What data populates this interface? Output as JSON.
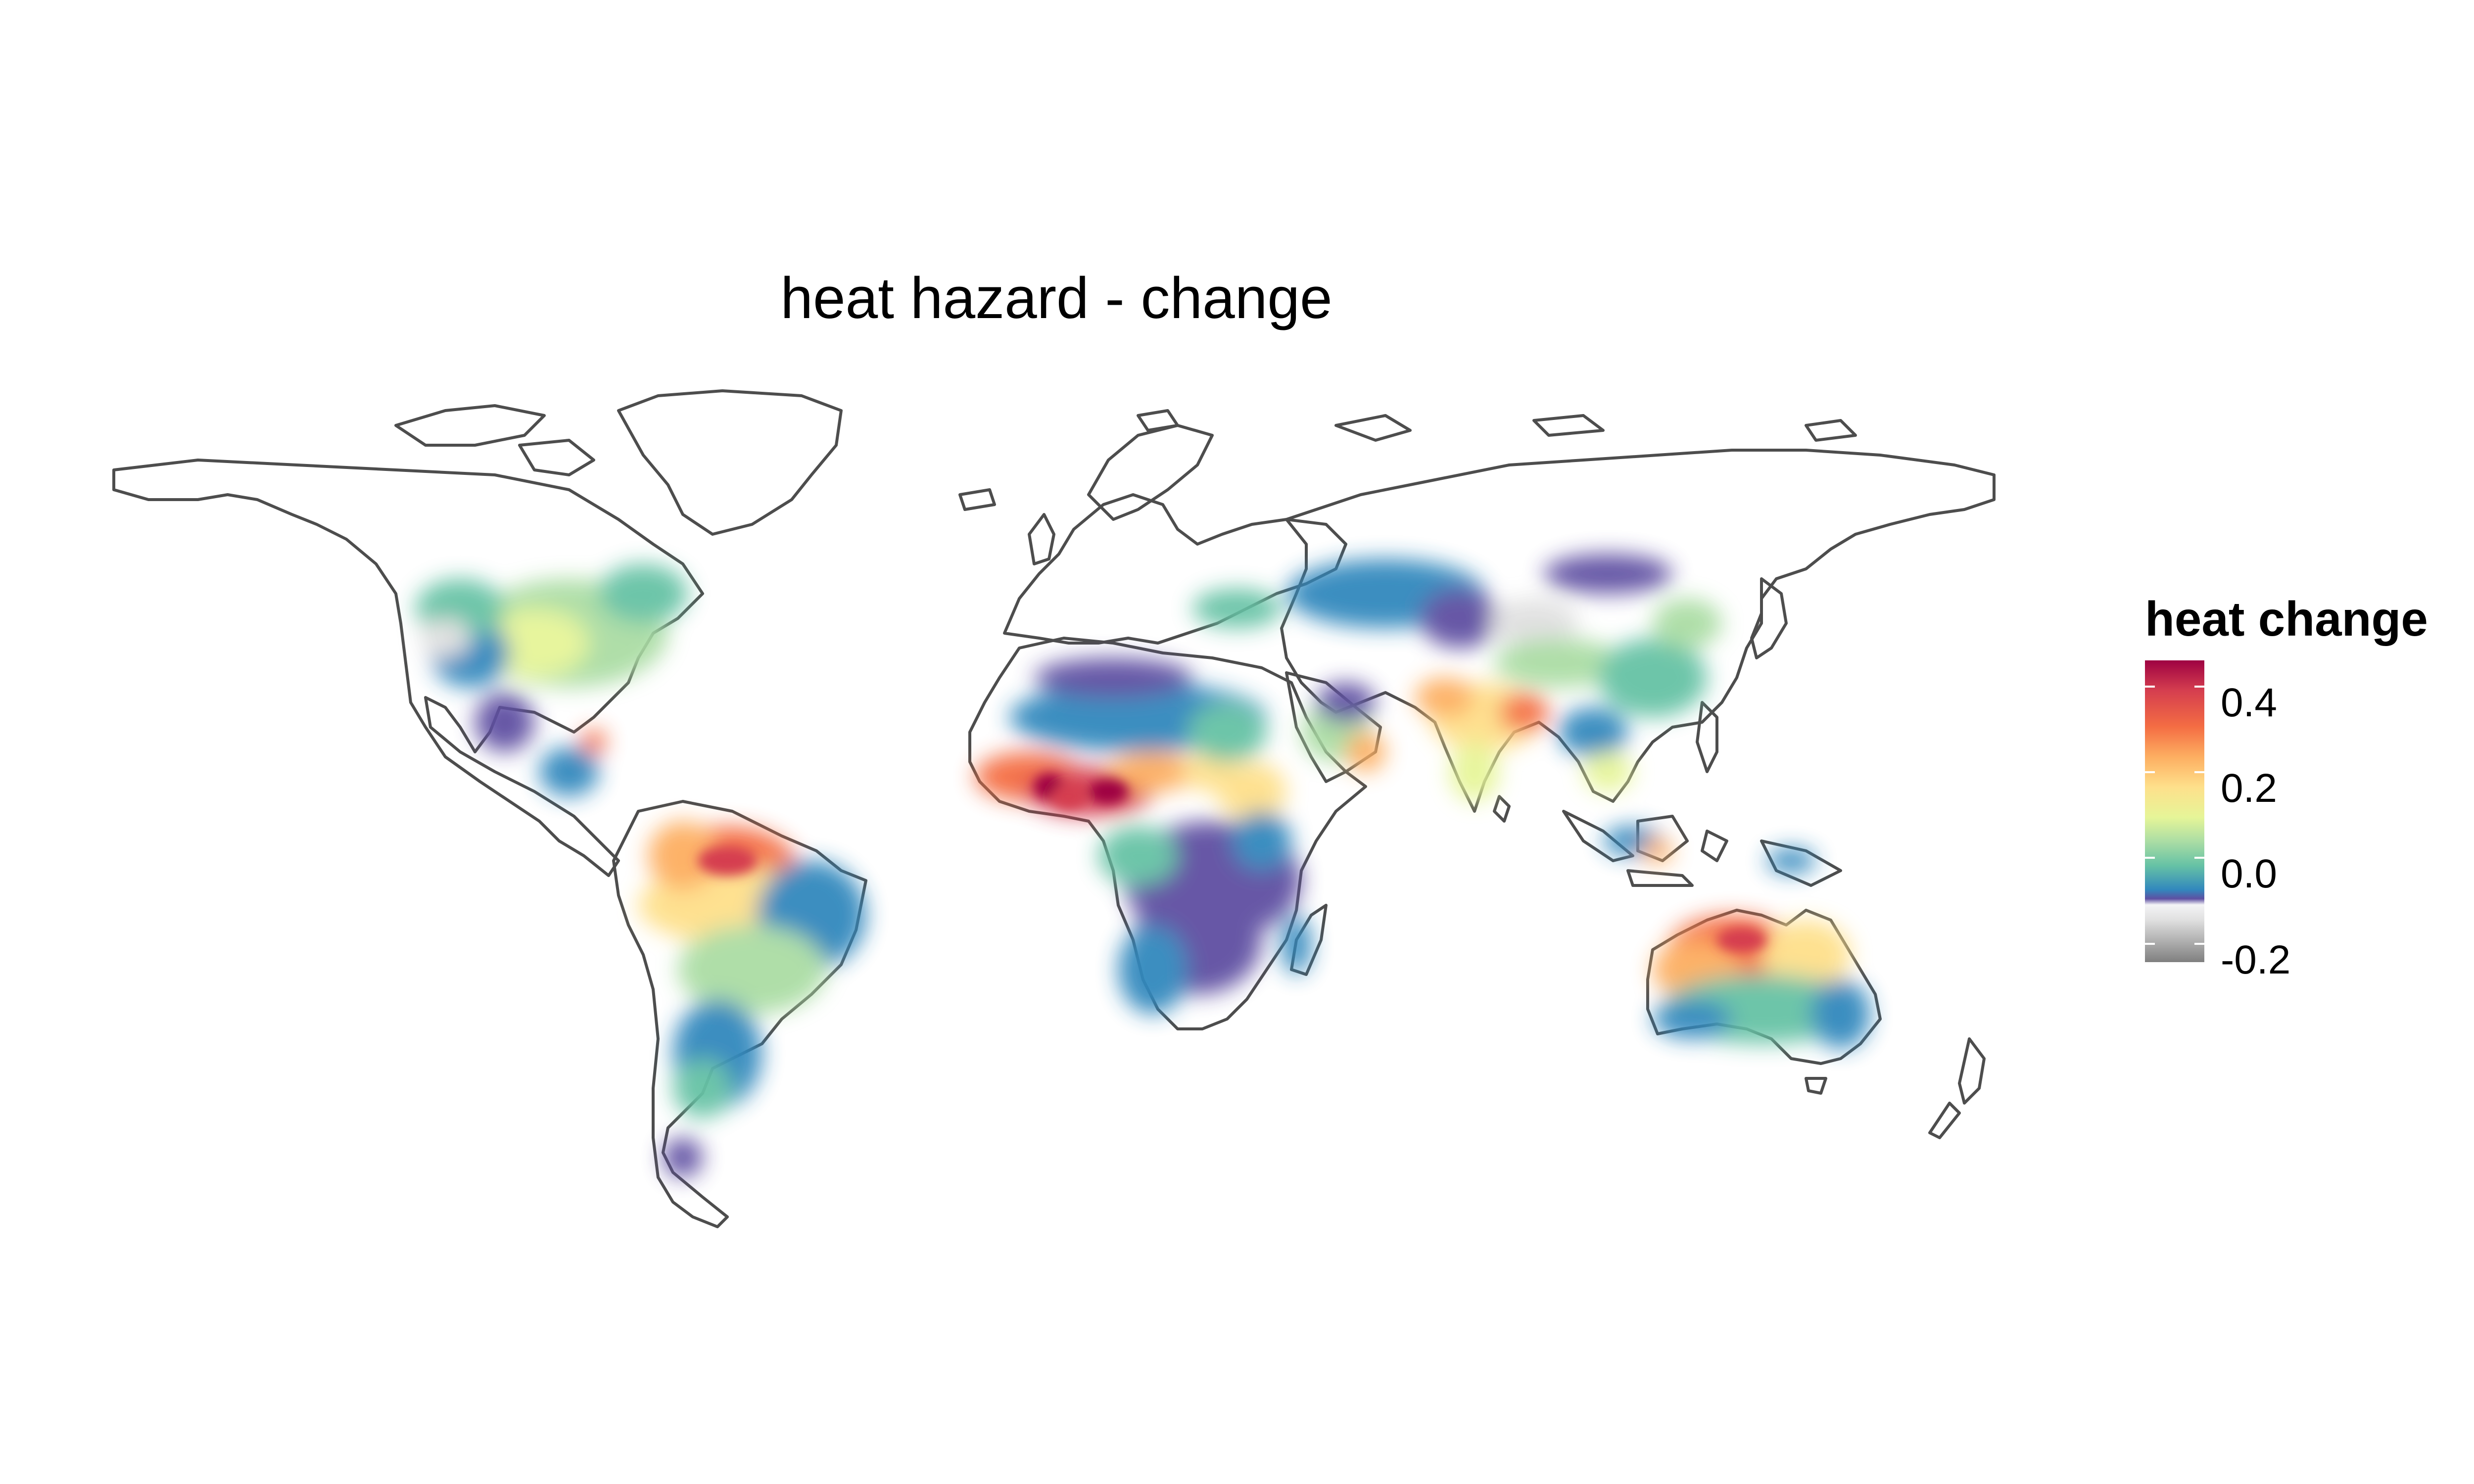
{
  "title": "heat hazard - change",
  "legend": {
    "title": "heat change",
    "ticks": [
      "0.4",
      "0.2",
      "0.0",
      "-0.2"
    ],
    "colors": [
      "#9e0142",
      "#d53e4f",
      "#f46d43",
      "#fdae61",
      "#fee08b",
      "#e6f598",
      "#abdda4",
      "#66c2a5",
      "#3288bd",
      "#5e4fa2",
      "#f0f0f0",
      "#7f7f7f"
    ]
  },
  "map": {
    "projection": "equirectangular",
    "border_color": "#4d4d4d",
    "ocean_color": "#ffffff"
  }
}
